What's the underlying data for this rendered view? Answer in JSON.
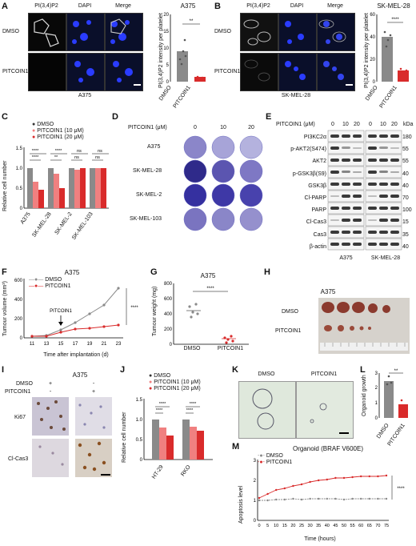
{
  "panels": {
    "A": {
      "label": "A",
      "title": "A375",
      "rows": [
        "DMSO",
        "PITCOIN1"
      ],
      "cols": [
        "PI(3,4)P2",
        "DAPI",
        "Merge"
      ],
      "cell_line": "A375",
      "ylabel": "PI(3,4)P2 intensity per platelet",
      "sig": "**",
      "groups": [
        "DMSO",
        "PITCOIN1"
      ],
      "yticks": [
        "0",
        "5",
        "10",
        "15",
        "20"
      ]
    },
    "B": {
      "label": "B",
      "title": "SK-MEL-28",
      "rows": [
        "DMSO",
        "PITCOIN1"
      ],
      "cols": [
        "PI(3,4)P2",
        "DAPI",
        "Merge"
      ],
      "cell_line": "SK-MEL-28",
      "ylabel": "PI(3,4)P2 intensity per platelet",
      "sig": "****",
      "groups": [
        "DMSO",
        "PITCOIN1"
      ],
      "yticks": [
        "0",
        "20",
        "40",
        "60"
      ]
    },
    "C": {
      "label": "C",
      "ylabel": "Relative cell number",
      "legend": [
        "DMSO",
        "PITCOIN1 (10 μM)",
        "PITCOIN1 (20 μM)"
      ],
      "groups": [
        "A375",
        "SK-MEL-28",
        "SK-MEL-2",
        "SK-MEL-103"
      ],
      "sigs": [
        "****",
        "****",
        "****",
        "**",
        "ns",
        "ns",
        "ns",
        "ns"
      ],
      "yticks": [
        "0",
        "0.5",
        "1.0",
        "1.5"
      ]
    },
    "D": {
      "label": "D",
      "header": "PITCOIN1 (μM)",
      "doses": [
        "0",
        "10",
        "20"
      ],
      "rows": [
        "A375",
        "SK-MEL-28",
        "SK-MEL-2",
        "SK-MEL-103"
      ]
    },
    "E": {
      "label": "E",
      "header": "PITCOIN1 (μM)",
      "doses": [
        "0",
        "10",
        "20",
        "0",
        "10",
        "20"
      ],
      "kda": "kDa",
      "proteins": [
        "PI3KC2α",
        "p-AKT2(S474)",
        "AKT2",
        "p-GSK3β(S9)",
        "GSK3β",
        "Cl-PARP",
        "PARP",
        "Cl-Cas3",
        "Cas3",
        "β-actin"
      ],
      "sizes": [
        "180",
        "55",
        "55",
        "40",
        "40",
        "70",
        "100",
        "15",
        "35",
        "40"
      ],
      "cell_lines": [
        "A375",
        "SK-MEL-28"
      ]
    },
    "F": {
      "label": "F",
      "title": "A375",
      "ylabel": "Tumour volume (mm³)",
      "xlabel": "Time after implantation (d)",
      "legend": [
        "DMSO",
        "PITCOIN1"
      ],
      "arrow_label": "PITCOIN1",
      "sig": "****",
      "xticks": [
        "11",
        "13",
        "15",
        "17",
        "19",
        "21",
        "23"
      ],
      "yticks": [
        "0",
        "200",
        "400",
        "600"
      ]
    },
    "G": {
      "label": "G",
      "title": "A375",
      "ylabel": "Tumour weight (mg)",
      "sig": "****",
      "groups": [
        "DMSO",
        "PITCOIN1"
      ],
      "yticks": [
        "0",
        "200",
        "400",
        "600",
        "800"
      ]
    },
    "H": {
      "label": "H",
      "title": "A375",
      "rows": [
        "DMSO",
        "PITCOIN1"
      ]
    },
    "I": {
      "label": "I",
      "title": "A375",
      "cond_rows": [
        "DMSO",
        "PITCOIN1"
      ],
      "signs": [
        [
          "+",
          "-"
        ],
        [
          "-",
          "+"
        ]
      ],
      "rows": [
        "Ki67",
        "Cl-Cas3"
      ]
    },
    "J": {
      "label": "J",
      "ylabel": "Relative cell number",
      "legend": [
        "DMSO",
        "PITCOIN1 (10 μM)",
        "PITCOIN1 (20 μM)"
      ],
      "groups": [
        "HT-29",
        "RKO"
      ],
      "sigs": [
        "****",
        "****",
        "****",
        "****"
      ],
      "yticks": [
        "0",
        "0.5",
        "1.0",
        "1.5"
      ]
    },
    "K": {
      "label": "K",
      "cols": [
        "DMSO",
        "PITCOIN1"
      ]
    },
    "L": {
      "label": "L",
      "ylabel": "Organoid growth",
      "sig": "**",
      "groups": [
        "DMSO",
        "PITCOIN1"
      ],
      "yticks": [
        "0",
        "1",
        "2",
        "3"
      ]
    },
    "M": {
      "label": "M",
      "title": "Organoid (BRAF V600E)",
      "legend": [
        "DMSO",
        "PITCOIN1"
      ],
      "ylabel": "Apoptosis level",
      "xlabel": "Time (hours)",
      "sig": "****",
      "xticks": [
        "0",
        "5",
        "10",
        "15",
        "20",
        "25",
        "30",
        "35",
        "40",
        "45",
        "50",
        "55",
        "60",
        "65",
        "70",
        "75"
      ],
      "yticks": [
        "0",
        "1",
        "2",
        "3"
      ]
    }
  },
  "colors": {
    "dmso": "#8a8a8a",
    "p10": "#f08080",
    "p20": "#d92b2b",
    "blue_nuclei": "#2a3cff",
    "tumour": "#8b3a2e"
  },
  "chart_data": [
    {
      "type": "bar",
      "panel": "A",
      "categories": [
        "DMSO",
        "PITCOIN1"
      ],
      "values": [
        9,
        1.5
      ],
      "ylabel": "PI(3,4)P2 intensity per platelet",
      "ylim": [
        0,
        20
      ]
    },
    {
      "type": "bar",
      "panel": "B",
      "categories": [
        "DMSO",
        "PITCOIN1"
      ],
      "values": [
        40,
        10
      ],
      "ylabel": "PI(3,4)P2 intensity per platelet",
      "ylim": [
        0,
        60
      ]
    },
    {
      "type": "bar",
      "panel": "C",
      "categories": [
        "A375",
        "SK-MEL-28",
        "SK-MEL-2",
        "SK-MEL-103"
      ],
      "series": [
        {
          "name": "DMSO",
          "values": [
            1.0,
            1.0,
            1.0,
            1.0
          ]
        },
        {
          "name": "PITCOIN1 (10 μM)",
          "values": [
            0.65,
            0.85,
            0.95,
            1.0
          ]
        },
        {
          "name": "PITCOIN1 (20 μM)",
          "values": [
            0.45,
            0.5,
            1.0,
            1.0
          ]
        }
      ],
      "ylabel": "Relative cell number",
      "ylim": [
        0,
        1.5
      ]
    },
    {
      "type": "line",
      "panel": "F",
      "x": [
        11,
        13,
        15,
        17,
        19,
        21,
        23
      ],
      "series": [
        {
          "name": "DMSO",
          "values": [
            15,
            25,
            80,
            160,
            250,
            340,
            520
          ]
        },
        {
          "name": "PITCOIN1",
          "values": [
            15,
            20,
            60,
            90,
            100,
            120,
            130
          ]
        }
      ],
      "xlabel": "Time after implantation (d)",
      "ylabel": "Tumour volume (mm³)",
      "ylim": [
        0,
        600
      ]
    },
    {
      "type": "scatter",
      "panel": "G",
      "categories": [
        "DMSO",
        "PITCOIN1"
      ],
      "values": [
        470,
        80
      ],
      "ylabel": "Tumour weight (mg)",
      "ylim": [
        0,
        800
      ]
    },
    {
      "type": "bar",
      "panel": "J",
      "categories": [
        "HT-29",
        "RKO"
      ],
      "series": [
        {
          "name": "DMSO",
          "values": [
            1.0,
            1.0
          ]
        },
        {
          "name": "PITCOIN1 (10 μM)",
          "values": [
            0.8,
            0.82
          ]
        },
        {
          "name": "PITCOIN1 (20 μM)",
          "values": [
            0.6,
            0.72
          ]
        }
      ],
      "ylabel": "Relative cell number",
      "ylim": [
        0,
        1.5
      ]
    },
    {
      "type": "bar",
      "panel": "L",
      "categories": [
        "DMSO",
        "PITCOIN1"
      ],
      "values": [
        2.4,
        0.9
      ],
      "ylabel": "Organoid growth",
      "ylim": [
        0,
        3
      ]
    },
    {
      "type": "line",
      "panel": "M",
      "x": [
        0,
        5,
        10,
        15,
        20,
        25,
        30,
        35,
        40,
        45,
        50,
        55,
        60,
        65,
        70,
        75
      ],
      "series": [
        {
          "name": "DMSO",
          "values": [
            1.0,
            1.0,
            1.05,
            1.05,
            1.1,
            1.05,
            1.1,
            1.1,
            1.1,
            1.1,
            1.05,
            1.1,
            1.1,
            1.1,
            1.1,
            1.1
          ]
        },
        {
          "name": "PITCOIN1",
          "values": [
            1.1,
            1.3,
            1.5,
            1.6,
            1.7,
            1.8,
            1.9,
            2.0,
            2.05,
            2.1,
            2.1,
            2.15,
            2.2,
            2.2,
            2.2,
            2.25
          ]
        }
      ],
      "xlabel": "Time (hours)",
      "ylabel": "Apoptosis level",
      "ylim": [
        0,
        3
      ]
    }
  ]
}
